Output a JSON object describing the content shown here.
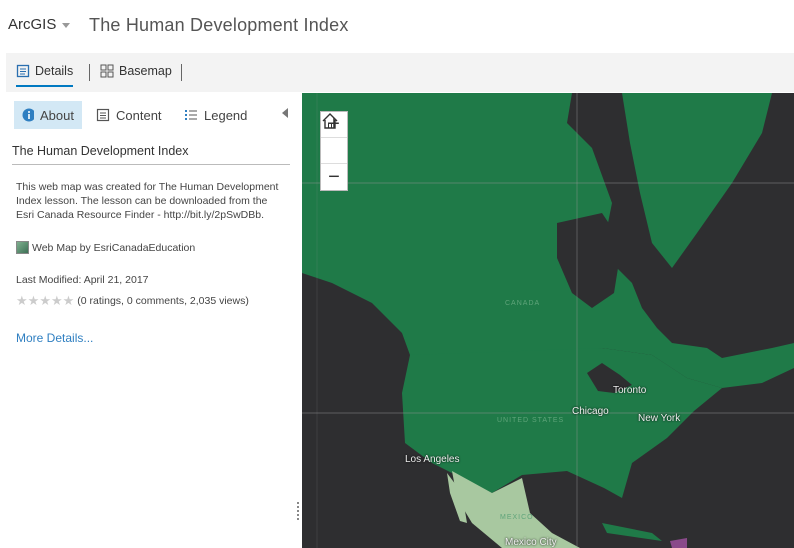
{
  "header": {
    "brand": "ArcGIS",
    "title": "The Human Development Index"
  },
  "toolbar": {
    "details_label": "Details",
    "basemap_label": "Basemap"
  },
  "panel": {
    "tabs": {
      "about": "About",
      "content": "Content",
      "legend": "Legend"
    },
    "title": "The Human Development Index",
    "description": "This web map was created for The Human Development Index lesson. The lesson can be downloaded from the Esri Canada Resource Finder - http://bit.ly/2pSwDBb.",
    "byline": "Web Map by EsriCanadaEducation",
    "last_modified": "Last Modified: April 21, 2017",
    "ratings": "(0 ratings, 0 comments, 2,035 views)",
    "more_details": "More Details..."
  },
  "map": {
    "zoom_in": "+",
    "zoom_out": "−",
    "labels": {
      "canada": "CANADA",
      "united_states": "UNITED STATES",
      "mexico": "MEXICO",
      "toronto": "Toronto",
      "chicago": "Chicago",
      "new_york": "New York",
      "los_angeles": "Los Angeles",
      "mexico_city": "Mexico City"
    },
    "colors": {
      "ocean": "#2e2e30",
      "high_hdi": "#1f7a48",
      "medium_hdi": "#a8c8a0",
      "low_hdi": "#8a4a8a"
    }
  }
}
